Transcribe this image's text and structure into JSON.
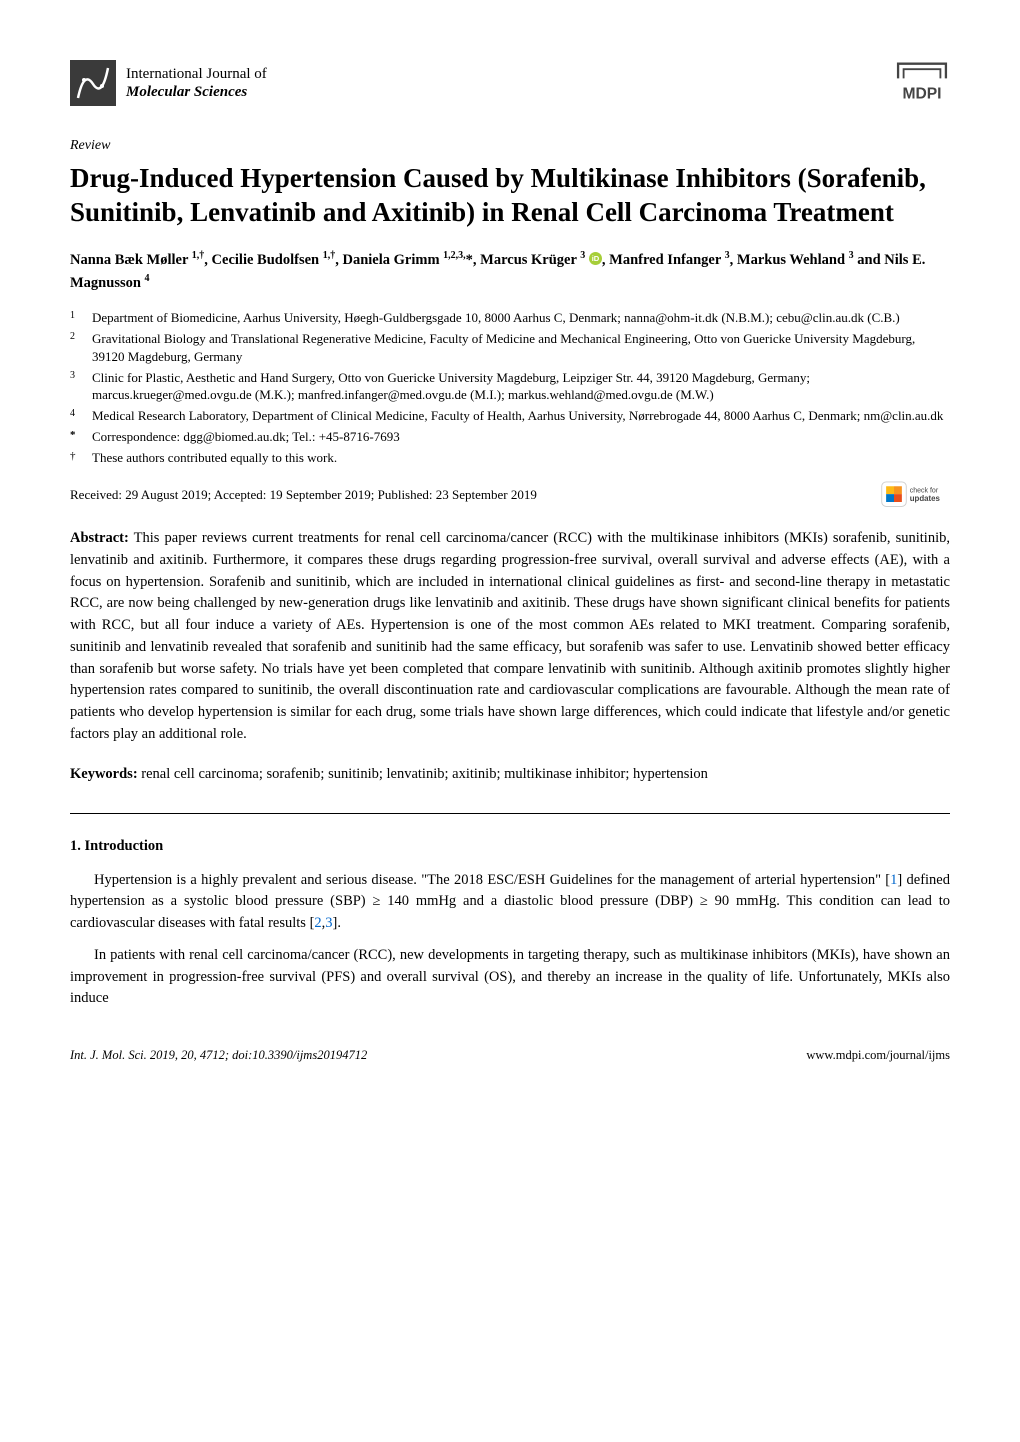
{
  "header": {
    "journal_line1": "International Journal of",
    "journal_line2": "Molecular Sciences",
    "publisher": "MDPI"
  },
  "article_type": "Review",
  "title": "Drug-Induced Hypertension Caused by Multikinase Inhibitors (Sorafenib, Sunitinib, Lenvatinib and Axitinib) in Renal Cell Carcinoma Treatment",
  "authors_html": "Nanna Bæk Møller <sup>1,†</sup>, Cecilie Budolfsen <sup>1,†</sup>, Daniela Grimm <sup>1,2,3,</sup>*, Marcus Krüger <sup>3</sup> <svg class='orcid' viewBox='0 0 24 24'><circle cx='12' cy='12' r='12' fill='#A6CE39'/><text x='12' y='17' text-anchor='middle' font-size='14' fill='#fff' font-family='Arial' font-weight='bold'>iD</text></svg>, Manfred Infanger <sup>3</sup>, Markus Wehland <sup>3</sup> and Nils E. Magnusson <sup>4</sup>",
  "affiliations": [
    {
      "num": "1",
      "text": "Department of Biomedicine, Aarhus University, Høegh-Guldbergsgade 10, 8000 Aarhus C, Denmark; nanna@ohm-it.dk (N.B.M.); cebu@clin.au.dk (C.B.)"
    },
    {
      "num": "2",
      "text": "Gravitational Biology and Translational Regenerative Medicine, Faculty of Medicine and Mechanical Engineering, Otto von Guericke University Magdeburg, 39120 Magdeburg, Germany"
    },
    {
      "num": "3",
      "text": "Clinic for Plastic, Aesthetic and Hand Surgery, Otto von Guericke University Magdeburg, Leipziger Str. 44, 39120 Magdeburg, Germany; marcus.krueger@med.ovgu.de (M.K.); manfred.infanger@med.ovgu.de (M.I.); markus.wehland@med.ovgu.de (M.W.)"
    },
    {
      "num": "4",
      "text": "Medical Research Laboratory, Department of Clinical Medicine, Faculty of Health, Aarhus University, Nørrebrogade 44, 8000 Aarhus C, Denmark; nm@clin.au.dk"
    },
    {
      "num": "*",
      "text": "Correspondence: dgg@biomed.au.dk; Tel.: +45-8716-7693"
    },
    {
      "num": "†",
      "text": "These authors contributed equally to this work."
    }
  ],
  "dates": "Received: 29 August 2019; Accepted: 19 September 2019; Published: 23 September 2019",
  "check_updates_label": "check for updates",
  "abstract_label": "Abstract:",
  "abstract_text": " This paper reviews current treatments for renal cell carcinoma/cancer (RCC) with the multikinase inhibitors (MKIs) sorafenib, sunitinib, lenvatinib and axitinib. Furthermore, it compares these drugs regarding progression-free survival, overall survival and adverse effects (AE), with a focus on hypertension. Sorafenib and sunitinib, which are included in international clinical guidelines as first- and second-line therapy in metastatic RCC, are now being challenged by new-generation drugs like lenvatinib and axitinib. These drugs have shown significant clinical benefits for patients with RCC, but all four induce a variety of AEs. Hypertension is one of the most common AEs related to MKI treatment. Comparing sorafenib, sunitinib and lenvatinib revealed that sorafenib and sunitinib had the same efficacy, but sorafenib was safer to use. Lenvatinib showed better efficacy than sorafenib but worse safety. No trials have yet been completed that compare lenvatinib with sunitinib. Although axitinib promotes slightly higher hypertension rates compared to sunitinib, the overall discontinuation rate and cardiovascular complications are favourable. Although the mean rate of patients who develop hypertension is similar for each drug, some trials have shown large differences, which could indicate that lifestyle and/or genetic factors play an additional role.",
  "keywords_label": "Keywords:",
  "keywords_text": " renal cell carcinoma; sorafenib; sunitinib; lenvatinib; axitinib; multikinase inhibitor; hypertension",
  "section1_heading": "1. Introduction",
  "para1_html": "Hypertension is a highly prevalent and serious disease. \"The 2018 ESC/ESH Guidelines for the management of arterial hypertension\" [<span class='ref-link'>1</span>] defined hypertension as a systolic blood pressure (SBP) ≥ 140 mmHg and a diastolic blood pressure (DBP) ≥ 90 mmHg. This condition can lead to cardiovascular diseases with fatal results [<span class='ref-link'>2</span>,<span class='ref-link'>3</span>].",
  "para2_html": "In patients with renal cell carcinoma/cancer (RCC), new developments in targeting therapy, such as multikinase inhibitors (MKIs), have shown an improvement in progression-free survival (PFS) and overall survival (OS), and thereby an increase in the quality of life. Unfortunately, MKIs also induce",
  "footer": {
    "left": "Int. J. Mol. Sci. 2019, 20, 4712; doi:10.3390/ijms20194712",
    "right": "www.mdpi.com/journal/ijms"
  },
  "colors": {
    "link": "#0066cc",
    "orcid": "#A6CE39",
    "crossmark_orange": "#F7931E",
    "crossmark_yellow": "#FDB913",
    "crossmark_blue": "#0077C8"
  }
}
